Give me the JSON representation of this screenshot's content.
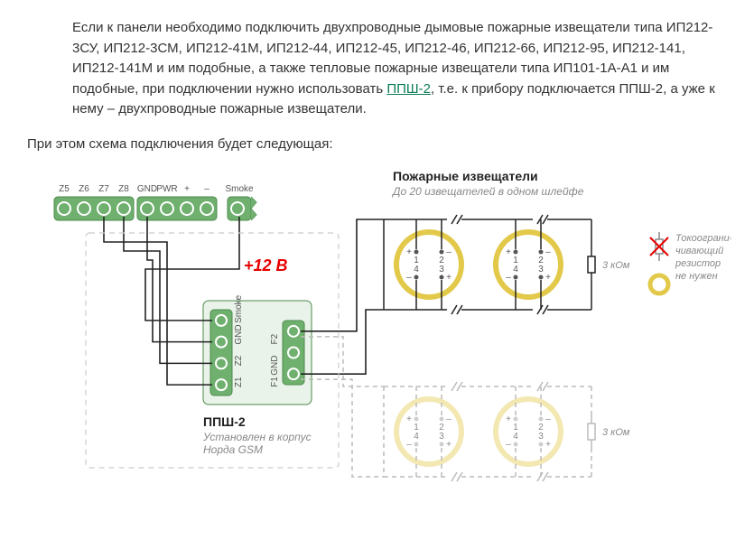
{
  "intro_text_before_link": "Если к панели необходимо подключить двухпроводные дымовые пожарные извещатели типа ИП212-3СУ, ИП212-3СМ, ИП212-41М, ИП212-44, ИП212-45, ИП212-46, ИП212-66, ИП212-95, ИП212-141, ИП212-141М и им подобные, а также тепловые пожарные извещатели типа ИП101-1А-А1 и им подобные, при подключении нужно использовать ",
  "link_text": "ППШ-2",
  "intro_text_after_link": ", т.е. к прибору подключается ППШ-2, а уже к нему – двухпроводные пожарные извещатели.",
  "subhead": "При этом схема подключения будет следующая:",
  "top_terminal": {
    "labels": [
      "Z5",
      "Z6",
      "Z7",
      "Z8",
      "GND",
      "PWR",
      "+",
      "–",
      "Smoke"
    ],
    "block1_count": 4,
    "block2_count": 4,
    "block3_count": 1,
    "fill": "#6fb06f",
    "hole_stroke": "#ffffff"
  },
  "voltage_label": "+12 В",
  "ppsh": {
    "left_labels": [
      "Z1",
      "Z2",
      "GND",
      "Smoke"
    ],
    "right_labels": [
      "F1",
      "GND",
      "F2"
    ],
    "title": "ППШ-2",
    "sub1": "Установлен в корпус",
    "sub2": "Норда GSM",
    "fill": "#6fb06f"
  },
  "detectors": {
    "title": "Пожарные извещатели",
    "subtitle": "До 20 извещателей в одном шлейфе",
    "ring_color": "#e3c94a",
    "pin_labels_top": [
      "1",
      "2",
      "4",
      "3"
    ],
    "resistor_label": "3 кОм"
  },
  "legend": {
    "line1": "Токоограни-",
    "line2": "чивающий",
    "line3": "резистор",
    "line4": "не нужен",
    "ring_color": "#e3c94a",
    "cross_color": "#e60000"
  },
  "colors": {
    "wire": "#222222",
    "dash": "#bbbbbb",
    "term_stroke": "#4b8a4b"
  }
}
